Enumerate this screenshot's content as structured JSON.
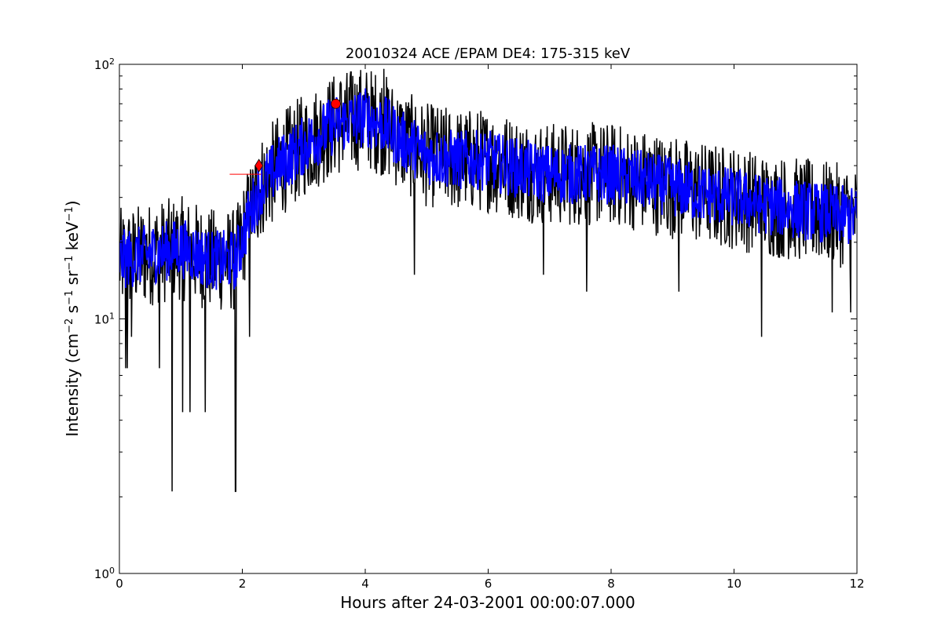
{
  "chart_data": {
    "type": "line",
    "title": "20010324 ACE /EPAM DE4: 175-315 keV",
    "xlabel": "Hours after 24-03-2001 00:00:07.000",
    "ylabel": {
      "prefix": "Intensity (cm",
      "e1": "−2",
      "s": " s",
      "e2": "−1",
      "sr": " sr",
      "e3": "−1",
      "kev": " keV",
      "e4": "−1",
      "suffix": ")"
    },
    "xlim": [
      0,
      12
    ],
    "ylim": [
      1,
      100
    ],
    "yscale": "log",
    "grid": false,
    "x_ticks": [
      0,
      2,
      4,
      6,
      8,
      10,
      12
    ],
    "x_tick_labels": [
      "0",
      "2",
      "4",
      "6",
      "8",
      "10",
      "12"
    ],
    "y_ticks": [
      {
        "value": 1,
        "base": "10",
        "exp": "0"
      },
      {
        "value": 10,
        "base": "10",
        "exp": "1"
      },
      {
        "value": 100,
        "base": "10",
        "exp": "2"
      }
    ],
    "series": [
      {
        "color": "#000000",
        "style": "raw",
        "x": [
          0,
          0.5,
          1,
          1.5,
          1.9,
          2.1,
          2.3,
          2.6,
          3,
          3.5,
          4,
          4.3,
          4.6,
          5,
          5.5,
          6,
          6.5,
          7,
          7.5,
          8,
          8.5,
          9,
          9.5,
          10,
          10.5,
          11,
          11.5,
          12
        ],
        "values": [
          17,
          18,
          19,
          17,
          17,
          25,
          33,
          40,
          48,
          58,
          62,
          58,
          50,
          44,
          42,
          42,
          39,
          37,
          37,
          37,
          35,
          33,
          31,
          30,
          28,
          27,
          26,
          25
        ],
        "dips": [
          {
            "x": 0.1,
            "y": 6.4
          },
          {
            "x": 0.13,
            "y": 6.4
          },
          {
            "x": 0.2,
            "y": 8.5
          },
          {
            "x": 0.65,
            "y": 6.4
          },
          {
            "x": 0.86,
            "y": 2.1
          },
          {
            "x": 1.03,
            "y": 4.3
          },
          {
            "x": 1.15,
            "y": 4.3
          },
          {
            "x": 1.4,
            "y": 4.3
          },
          {
            "x": 1.89,
            "y": 2.1
          },
          {
            "x": 2.12,
            "y": 8.5
          },
          {
            "x": 4.8,
            "y": 14.9
          },
          {
            "x": 6.9,
            "y": 14.9
          },
          {
            "x": 7.6,
            "y": 12.8
          },
          {
            "x": 9.1,
            "y": 12.8
          },
          {
            "x": 10.45,
            "y": 8.5
          },
          {
            "x": 11.6,
            "y": 10.6
          },
          {
            "x": 11.9,
            "y": 10.6
          }
        ],
        "spikes": [
          {
            "x": 3.8,
            "y": 90
          },
          {
            "x": 4.3,
            "y": 96
          },
          {
            "x": 3.6,
            "y": 85
          }
        ]
      },
      {
        "color": "#0000ff",
        "style": "smoothed",
        "x": [
          0,
          0.5,
          1,
          1.5,
          1.9,
          2.1,
          2.3,
          2.6,
          3,
          3.5,
          4,
          4.3,
          4.6,
          5,
          5.5,
          6,
          6.5,
          7,
          7.5,
          8,
          8.5,
          9,
          9.5,
          10,
          10.5,
          11,
          11.5,
          12
        ],
        "values": [
          17,
          18,
          19,
          17,
          17,
          25,
          33,
          40,
          48,
          58,
          62,
          58,
          50,
          44,
          42,
          42,
          39,
          37,
          37,
          37,
          35,
          33,
          31,
          30,
          28,
          27,
          26,
          25
        ]
      }
    ],
    "markers": [
      {
        "shape": "circle",
        "color": "#ff0000",
        "x": 3.52,
        "y": 70
      },
      {
        "shape": "diamond",
        "color": "#ff0000",
        "x": 2.27,
        "y": 40
      },
      {
        "shape": "tick",
        "color": "#ff0000",
        "x": 2.05,
        "y": 37
      }
    ]
  }
}
